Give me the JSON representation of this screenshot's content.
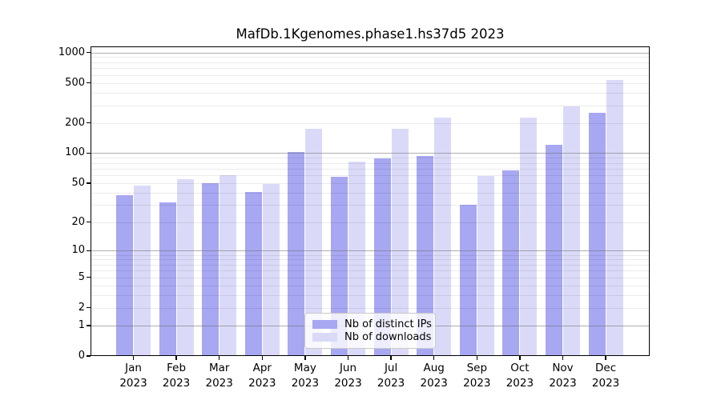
{
  "page": {
    "background": "#ffffff"
  },
  "chart_data": {
    "type": "bar",
    "title": "MafDb.1Kgenomes.phase1.hs37d5 2023",
    "categories": [
      "Jan",
      "Feb",
      "Mar",
      "Apr",
      "May",
      "Jun",
      "Jul",
      "Aug",
      "Sep",
      "Oct",
      "Nov",
      "Dec"
    ],
    "category_year": "2023",
    "series": [
      {
        "name": "Nb of distinct IPs",
        "color": "#a7a7f2",
        "values": [
          38,
          32,
          50,
          41,
          103,
          58,
          88,
          93,
          30,
          67,
          121,
          250
        ]
      },
      {
        "name": "Nb of downloads",
        "color": "#dadaf8",
        "values": [
          47,
          55,
          60,
          49,
          175,
          82,
          176,
          228,
          59,
          226,
          290,
          530
        ]
      }
    ],
    "yscale": "log1p",
    "ylim": [
      0,
      1140
    ],
    "yticks": [
      1000,
      500,
      200,
      100,
      50,
      20,
      10,
      5,
      2,
      1,
      0
    ],
    "grid_major": [
      1,
      10,
      100,
      1000
    ],
    "grid_minor": [
      2,
      3,
      4,
      5,
      6,
      7,
      8,
      9,
      20,
      30,
      40,
      50,
      60,
      70,
      80,
      90,
      200,
      300,
      400,
      500,
      600,
      700,
      800,
      900
    ],
    "grid": "on",
    "legend_position": "bottom-center",
    "colors": {
      "axis": "#000000",
      "grid_major": "#6e6e6e",
      "grid_minor": "#e8e8e8",
      "text": "#000000",
      "legend_border": "#c9c9c9"
    }
  }
}
